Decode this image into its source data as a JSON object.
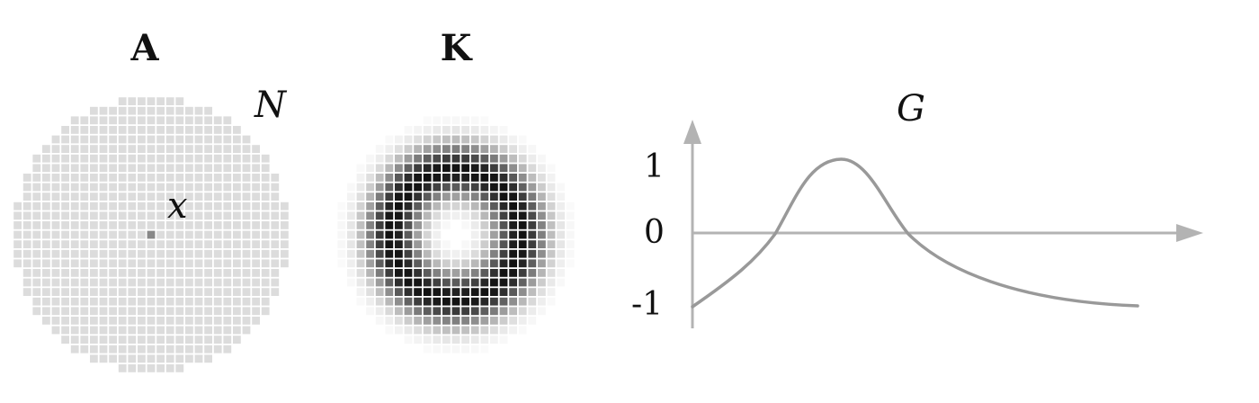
{
  "panels": {
    "a": {
      "title": "A",
      "set_label": "N",
      "point_label": "x"
    },
    "k": {
      "title": "K"
    },
    "g": {
      "title": "G",
      "ticks": [
        "1",
        "0",
        "-1"
      ]
    }
  },
  "colors": {
    "grid_cell": "#dcdcdc",
    "highlight_cell": "#888888",
    "axis": "#b3b3b3",
    "curve": "#999999",
    "kernel_dark": "#111111"
  }
}
